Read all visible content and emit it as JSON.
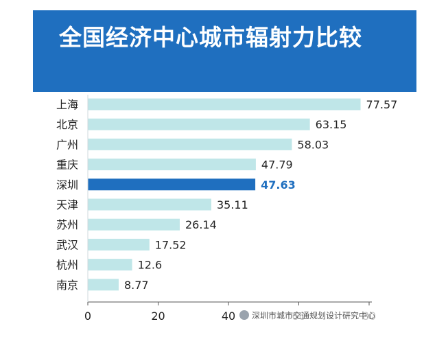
{
  "chart_data": {
    "type": "bar",
    "orientation": "horizontal",
    "title": "全国经济中心城市辐射力比较",
    "categories": [
      "上海",
      "北京",
      "广州",
      "重庆",
      "深圳",
      "天津",
      "苏州",
      "武汉",
      "杭州",
      "南京"
    ],
    "values": [
      77.57,
      63.15,
      58.03,
      47.79,
      47.63,
      35.11,
      26.14,
      17.52,
      12.6,
      8.77
    ],
    "value_labels": [
      "77.57",
      "63.15",
      "58.03",
      "47.79",
      "47.63",
      "35.11",
      "26.14",
      "17.52",
      "12.6",
      "8.77"
    ],
    "highlight_category": "深圳",
    "xlim": [
      0,
      80
    ],
    "xticks": [
      "0",
      "20",
      "40",
      "60",
      "80"
    ],
    "colors": {
      "bar": "#bfe6e8",
      "highlight": "#1f6fbf",
      "banner": "#1f6fbf"
    },
    "grid": false,
    "legend": "none"
  },
  "watermark": {
    "text": "深圳市城市交通规划设计研究中心",
    "icon": "wechat-icon"
  }
}
